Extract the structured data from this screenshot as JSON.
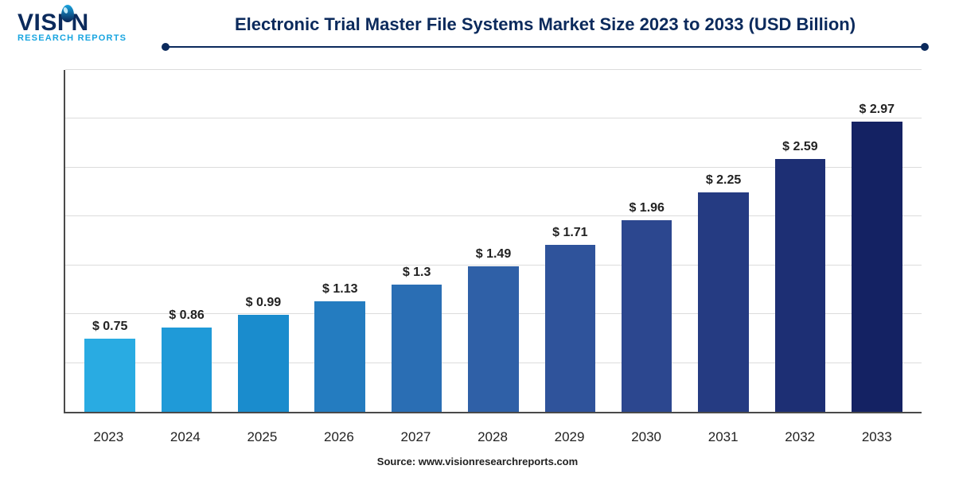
{
  "logo": {
    "main_pre": "VISI",
    "main_post": "N",
    "sub": "RESEARCH REPORTS"
  },
  "chart": {
    "type": "bar",
    "title": "Electronic Trial Master File Systems Market Size 2023 to 2033 (USD Billion)",
    "title_color": "#0b2a5c",
    "title_fontsize": 22,
    "divider_color": "#0b2a5c",
    "background_color": "#ffffff",
    "grid_color": "#dcdcdc",
    "axis_color": "#4a4a4a",
    "bar_width_pct": 66,
    "num_gridlines": 7,
    "ylim": [
      0,
      3.5
    ],
    "label_prefix": "$ ",
    "label_fontsize": 16,
    "label_color": "#222222",
    "xlabel_fontsize": 17,
    "xlabel_color": "#222222",
    "categories": [
      "2023",
      "2024",
      "2025",
      "2026",
      "2027",
      "2028",
      "2029",
      "2030",
      "2031",
      "2032",
      "2033"
    ],
    "values": [
      0.75,
      0.86,
      0.99,
      1.13,
      1.3,
      1.49,
      1.71,
      1.96,
      2.25,
      2.59,
      2.97
    ],
    "value_labels": [
      "0.75",
      "0.86",
      "0.99",
      "1.13",
      "1.3",
      "1.49",
      "1.71",
      "1.96",
      "2.25",
      "2.59",
      "2.97"
    ],
    "bar_colors": [
      "#29abe2",
      "#1f9ad8",
      "#1a8ccd",
      "#247cc0",
      "#2a6eb4",
      "#2f60a7",
      "#2f539b",
      "#2c478f",
      "#253b82",
      "#1d2f74",
      "#142263"
    ]
  },
  "source": "Source: www.visionresearchreports.com"
}
